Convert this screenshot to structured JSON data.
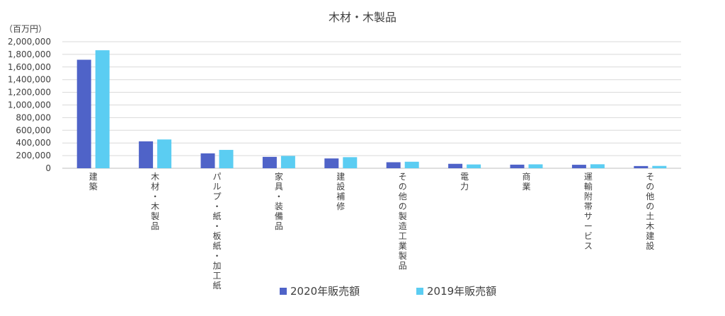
{
  "chart_data": {
    "type": "bar",
    "title": "木材・木製品",
    "unit_label": "（百万円）",
    "ylim": [
      0,
      2000000
    ],
    "yticks": [
      "0",
      "200,000",
      "400,000",
      "600,000",
      "800,000",
      "1,000,000",
      "1,200,000",
      "1,400,000",
      "1,600,000",
      "1,800,000",
      "2,000,000"
    ],
    "categories": [
      "建築",
      "木材・木製品",
      "パルプ・紙・板紙・加工紙",
      "家具・装備品",
      "建設補修",
      "その他の製造工業製品",
      "電力",
      "商業",
      "運輸附帯サービス",
      "その他の土木建設"
    ],
    "series": [
      {
        "name": "2020年販売額",
        "color": "#4f63c8",
        "values": [
          1715000,
          425000,
          235000,
          180000,
          155000,
          95000,
          70000,
          57000,
          55000,
          35000
        ]
      },
      {
        "name": "2019年販売額",
        "color": "#5bcdf2",
        "values": [
          1865000,
          455000,
          290000,
          195000,
          175000,
          103000,
          60000,
          62000,
          63000,
          37000
        ]
      }
    ],
    "grid": true,
    "legend_position": "bottom"
  }
}
